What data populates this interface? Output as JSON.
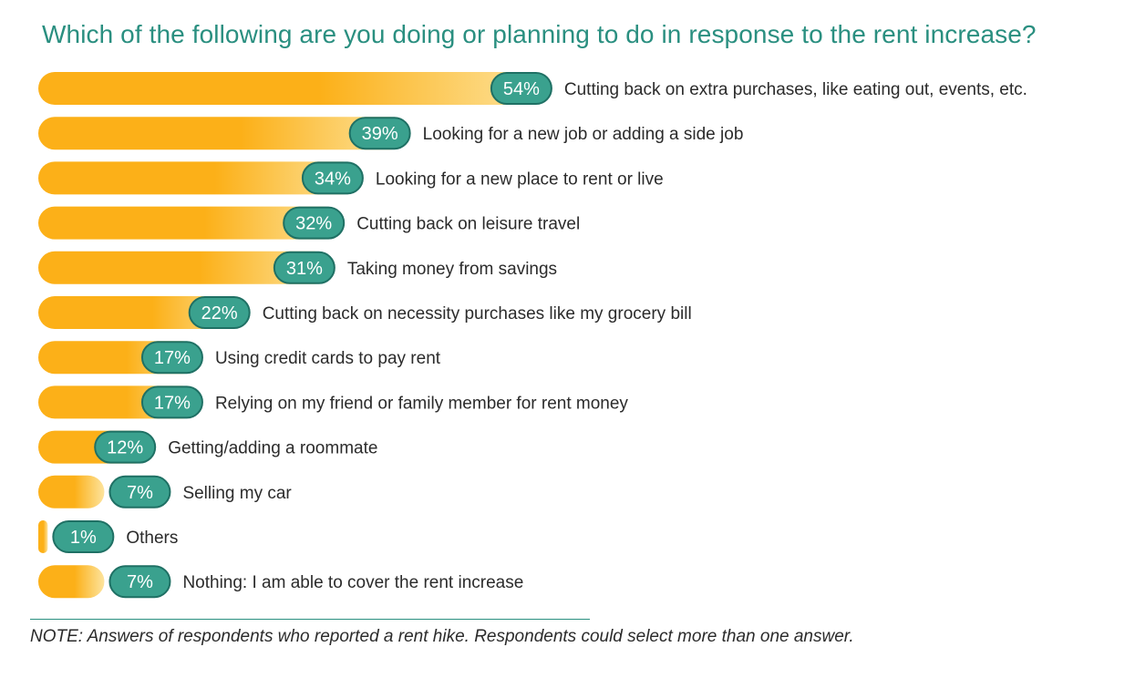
{
  "title": "Which of the following are you doing or planning to do in response to the rent increase?",
  "note": "NOTE: Answers of respondents who reported a rent hike. Respondents could select more than one answer.",
  "colors": {
    "bar_start": "#fcb018",
    "bar_end": "#fde49e",
    "badge": "#3aa18e",
    "badge_border": "#1f7064",
    "badge_text": "#ffffff",
    "label_text": "#2b2b2b",
    "title": "#2a8f80"
  },
  "chart_data": {
    "type": "bar",
    "orientation": "horizontal",
    "title": "Which of the following are you doing or planning to do in response to the rent increase?",
    "categories": [
      "Cutting back on extra purchases, like eating out, events, etc.",
      "Looking for a new job or adding a side job",
      "Looking for a new place to rent or live",
      "Cutting back on leisure travel",
      "Taking money from savings",
      "Cutting back on necessity purchases like my grocery bill",
      "Using credit cards to pay rent",
      "Relying on my friend or family member for rent money",
      "Getting/adding a roommate",
      "Selling my car",
      "Others",
      "Nothing: I am able to cover the rent increase"
    ],
    "values": [
      54,
      39,
      34,
      32,
      31,
      22,
      17,
      17,
      12,
      7,
      1,
      7
    ],
    "value_labels": [
      "54%",
      "39%",
      "34%",
      "32%",
      "31%",
      "22%",
      "17%",
      "17%",
      "12%",
      "7%",
      "1%",
      "7%"
    ],
    "unit": "%",
    "xlim": [
      0,
      54
    ],
    "grid": false,
    "legend": "none"
  }
}
